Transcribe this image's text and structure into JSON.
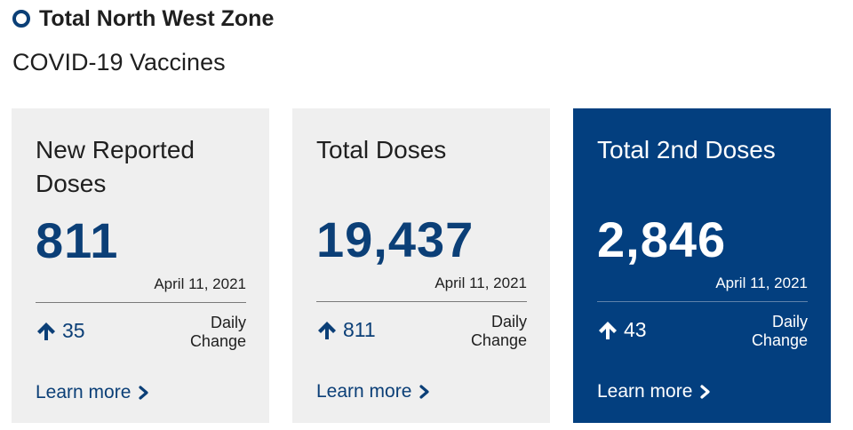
{
  "header": {
    "zone_title": "Total North West Zone",
    "subtitle": "COVID-19 Vaccines",
    "icon": "ring-bullet-icon"
  },
  "colors": {
    "brand_blue": "#0b3f77",
    "card_bg": "#efefef",
    "card_dark_bg": "#033f7f",
    "text": "#1f1f1f"
  },
  "cards": [
    {
      "title": "New Reported Doses",
      "value": "811",
      "date": "April 11, 2021",
      "change": "35",
      "change_label": "Daily Change",
      "learn_more": "Learn more",
      "icons": [
        "arrow-up-icon",
        "chevron-right-icon"
      ]
    },
    {
      "title": "Total Doses",
      "value": "19,437",
      "date": "April 11, 2021",
      "change": "811",
      "change_label": "Daily Change",
      "learn_more": "Learn more",
      "icons": [
        "arrow-up-icon",
        "chevron-right-icon"
      ]
    },
    {
      "title": "Total 2nd Doses",
      "value": "2,846",
      "date": "April 11, 2021",
      "change": "43",
      "change_label": "Daily Change",
      "learn_more": "Learn more",
      "icons": [
        "arrow-up-icon",
        "chevron-right-icon"
      ]
    }
  ]
}
